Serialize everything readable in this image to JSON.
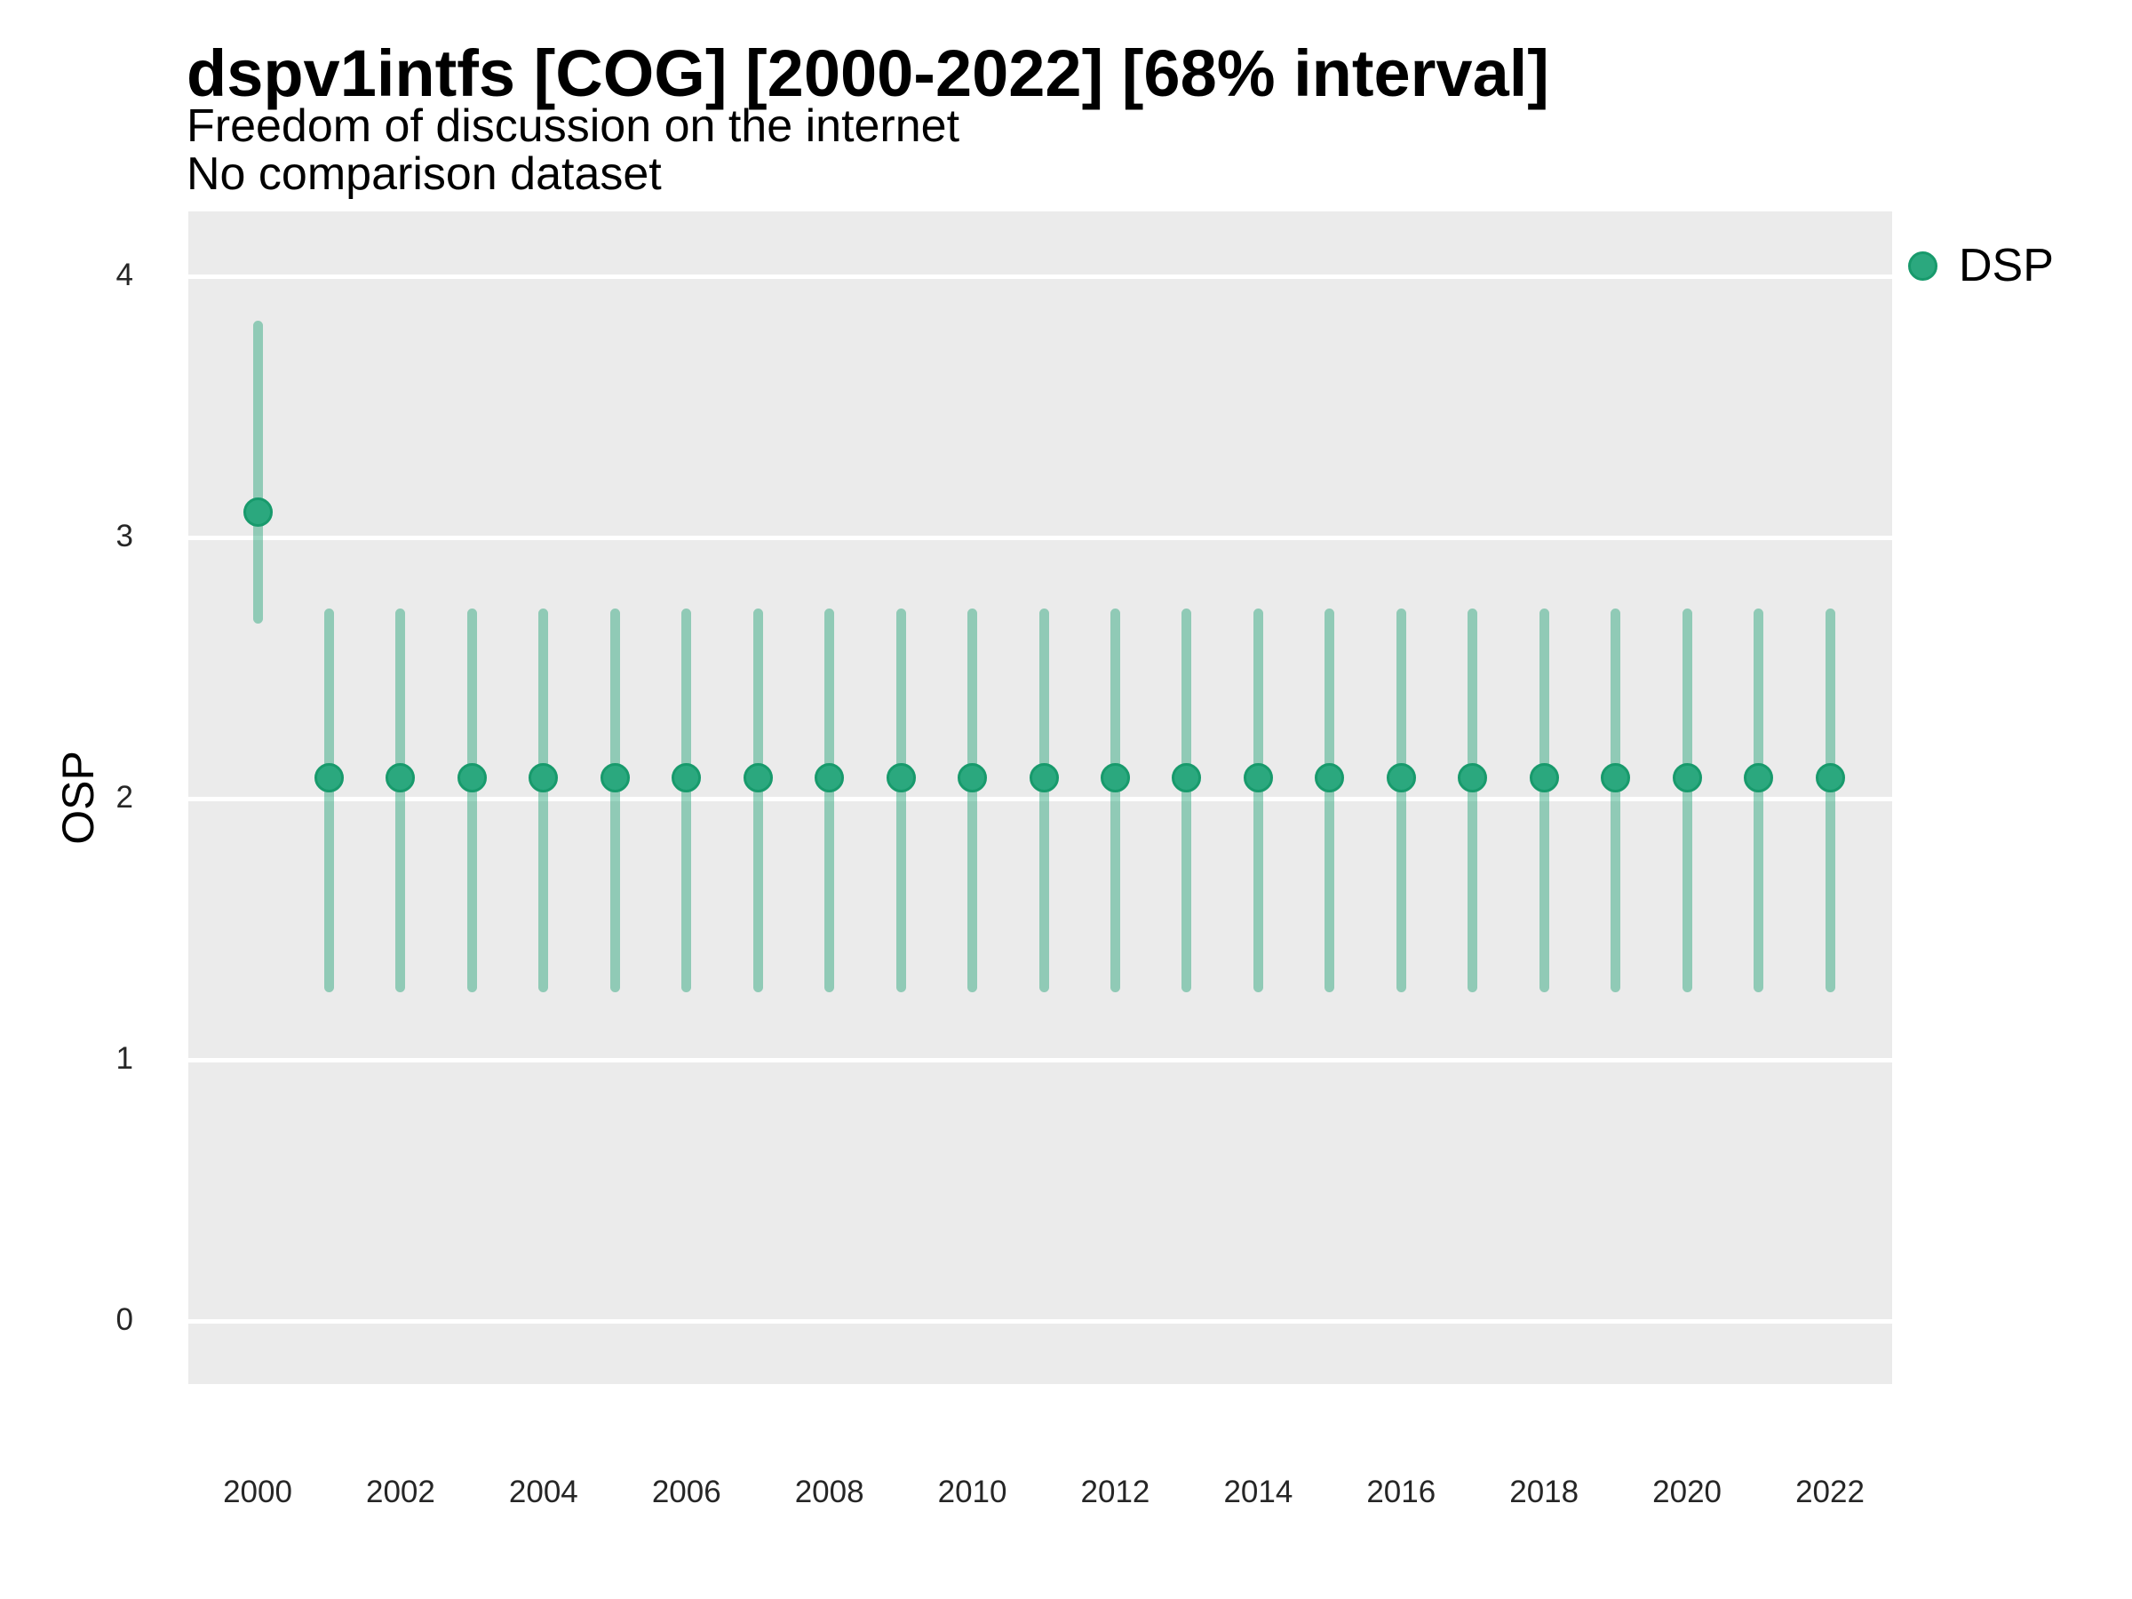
{
  "header": {
    "title": "dspv1intfs [COG] [2000-2022] [68% interval]",
    "subtitle": "Freedom of discussion on the internet",
    "note": "No comparison dataset"
  },
  "chart_data": {
    "type": "pointrange",
    "title": "dspv1intfs [COG] [2000-2022] [68% interval]",
    "subtitle": "Freedom of discussion on the internet",
    "note": "No comparison dataset",
    "xlabel": "",
    "ylabel": "OSP",
    "grid": "horizontal-major-only",
    "legend_position": "right",
    "colors": {
      "panel_bg": "#EBEBEB",
      "grid": "#FFFFFF",
      "point_fill": "#2BA87E",
      "point_stroke": "#189A6C",
      "interval": "rgba(33,162,117,0.45)"
    },
    "xlim": [
      1999.03,
      2022.87
    ],
    "ylim": [
      -0.24,
      4.25
    ],
    "x_ticks": [
      2000,
      2002,
      2004,
      2006,
      2008,
      2010,
      2012,
      2014,
      2016,
      2018,
      2020,
      2022
    ],
    "y_ticks": [
      0,
      1,
      2,
      3,
      4
    ],
    "legend": {
      "entries": [
        {
          "label": "DSP"
        }
      ]
    },
    "series": [
      {
        "name": "DSP",
        "points": [
          {
            "x": 2000,
            "y": 3.1,
            "lo": 2.67,
            "hi": 3.83
          },
          {
            "x": 2001,
            "y": 2.08,
            "lo": 1.26,
            "hi": 2.73
          },
          {
            "x": 2002,
            "y": 2.08,
            "lo": 1.26,
            "hi": 2.73
          },
          {
            "x": 2003,
            "y": 2.08,
            "lo": 1.26,
            "hi": 2.73
          },
          {
            "x": 2004,
            "y": 2.08,
            "lo": 1.26,
            "hi": 2.73
          },
          {
            "x": 2005,
            "y": 2.08,
            "lo": 1.26,
            "hi": 2.73
          },
          {
            "x": 2006,
            "y": 2.08,
            "lo": 1.26,
            "hi": 2.73
          },
          {
            "x": 2007,
            "y": 2.08,
            "lo": 1.26,
            "hi": 2.73
          },
          {
            "x": 2008,
            "y": 2.08,
            "lo": 1.26,
            "hi": 2.73
          },
          {
            "x": 2009,
            "y": 2.08,
            "lo": 1.26,
            "hi": 2.73
          },
          {
            "x": 2010,
            "y": 2.08,
            "lo": 1.26,
            "hi": 2.73
          },
          {
            "x": 2011,
            "y": 2.08,
            "lo": 1.26,
            "hi": 2.73
          },
          {
            "x": 2012,
            "y": 2.08,
            "lo": 1.26,
            "hi": 2.73
          },
          {
            "x": 2013,
            "y": 2.08,
            "lo": 1.26,
            "hi": 2.73
          },
          {
            "x": 2014,
            "y": 2.08,
            "lo": 1.26,
            "hi": 2.73
          },
          {
            "x": 2015,
            "y": 2.08,
            "lo": 1.26,
            "hi": 2.73
          },
          {
            "x": 2016,
            "y": 2.08,
            "lo": 1.26,
            "hi": 2.73
          },
          {
            "x": 2017,
            "y": 2.08,
            "lo": 1.26,
            "hi": 2.73
          },
          {
            "x": 2018,
            "y": 2.08,
            "lo": 1.26,
            "hi": 2.73
          },
          {
            "x": 2019,
            "y": 2.08,
            "lo": 1.26,
            "hi": 2.73
          },
          {
            "x": 2020,
            "y": 2.08,
            "lo": 1.26,
            "hi": 2.73
          },
          {
            "x": 2021,
            "y": 2.08,
            "lo": 1.26,
            "hi": 2.73
          },
          {
            "x": 2022,
            "y": 2.08,
            "lo": 1.26,
            "hi": 2.73
          }
        ]
      }
    ]
  }
}
